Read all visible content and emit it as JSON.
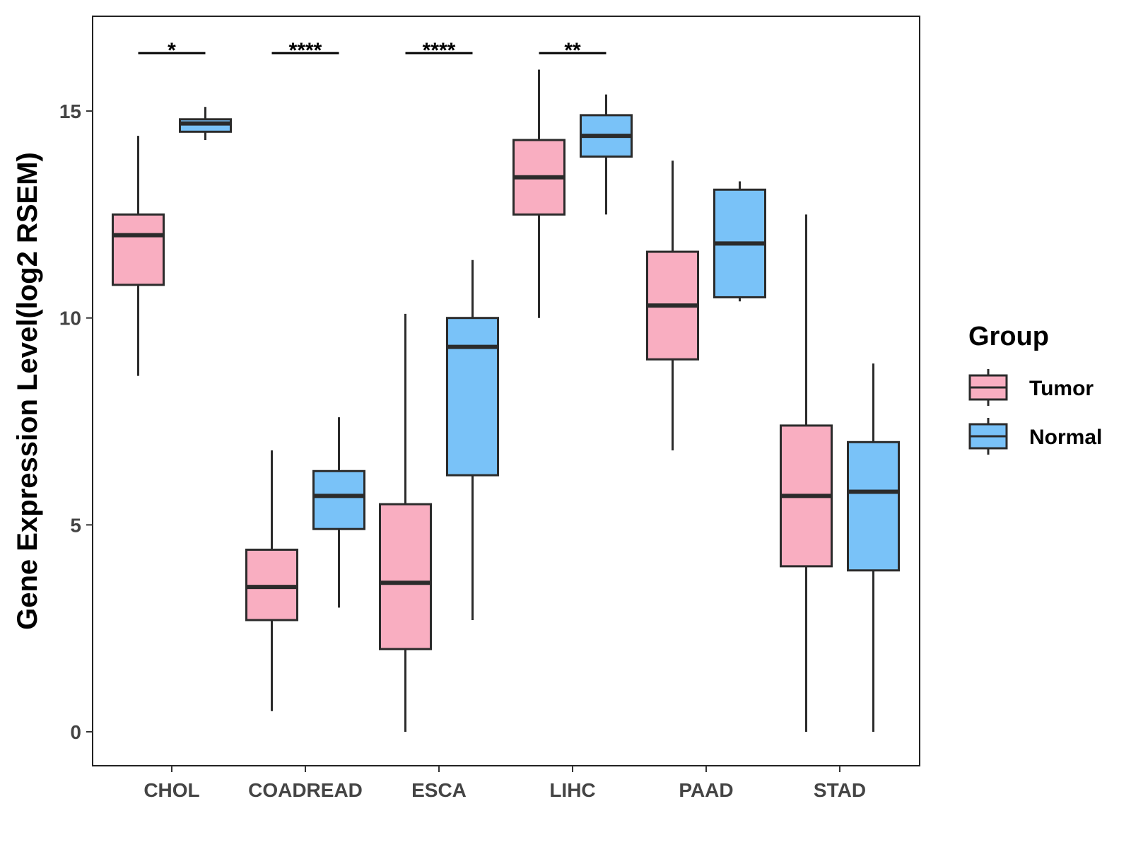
{
  "chart_data": {
    "type": "boxplot",
    "title": "",
    "xlabel": "",
    "ylabel": "Gene Expression Level(log2 RSEM)",
    "ylim": [
      -0.8,
      17.3
    ],
    "yticks": [
      0,
      5,
      10,
      15
    ],
    "grid": false,
    "categories": [
      "CHOL",
      "COADREAD",
      "ESCA",
      "LIHC",
      "PAAD",
      "STAD"
    ],
    "legend": {
      "title": "Group",
      "position": "right",
      "entries": [
        {
          "label": "Tumor",
          "color": "#F9AEC1"
        },
        {
          "label": "Normal",
          "color": "#79C2F8"
        }
      ]
    },
    "series": [
      {
        "name": "Tumor",
        "color": "#F9AEC1",
        "boxes": [
          {
            "category": "CHOL",
            "min": 8.6,
            "q1": 10.8,
            "median": 12.0,
            "q3": 12.5,
            "max": 14.4
          },
          {
            "category": "COADREAD",
            "min": 0.5,
            "q1": 2.7,
            "median": 3.5,
            "q3": 4.4,
            "max": 6.8
          },
          {
            "category": "ESCA",
            "min": 0.0,
            "q1": 2.0,
            "median": 3.6,
            "q3": 5.5,
            "max": 10.1
          },
          {
            "category": "LIHC",
            "min": 10.0,
            "q1": 12.5,
            "median": 13.4,
            "q3": 14.3,
            "max": 16.0
          },
          {
            "category": "PAAD",
            "min": 6.8,
            "q1": 9.0,
            "median": 10.3,
            "q3": 11.6,
            "max": 13.8
          },
          {
            "category": "STAD",
            "min": 0.0,
            "q1": 4.0,
            "median": 5.7,
            "q3": 7.4,
            "max": 12.5
          }
        ]
      },
      {
        "name": "Normal",
        "color": "#79C2F8",
        "boxes": [
          {
            "category": "CHOL",
            "min": 14.3,
            "q1": 14.5,
            "median": 14.7,
            "q3": 14.8,
            "max": 15.1
          },
          {
            "category": "COADREAD",
            "min": 3.0,
            "q1": 4.9,
            "median": 5.7,
            "q3": 6.3,
            "max": 7.6
          },
          {
            "category": "ESCA",
            "min": 2.7,
            "q1": 6.2,
            "median": 9.3,
            "q3": 10.0,
            "max": 11.4
          },
          {
            "category": "LIHC",
            "min": 12.5,
            "q1": 13.9,
            "median": 14.4,
            "q3": 14.9,
            "max": 15.4
          },
          {
            "category": "PAAD",
            "min": 10.4,
            "q1": 10.5,
            "median": 11.8,
            "q3": 13.1,
            "max": 13.3
          },
          {
            "category": "STAD",
            "min": 0.0,
            "q1": 3.9,
            "median": 5.8,
            "q3": 7.0,
            "max": 8.9
          }
        ]
      }
    ],
    "significance": [
      {
        "category": "CHOL",
        "label": "*",
        "y": 16.4
      },
      {
        "category": "COADREAD",
        "label": "****",
        "y": 16.4
      },
      {
        "category": "ESCA",
        "label": "****",
        "y": 16.4
      },
      {
        "category": "LIHC",
        "label": "**",
        "y": 16.4
      }
    ]
  }
}
